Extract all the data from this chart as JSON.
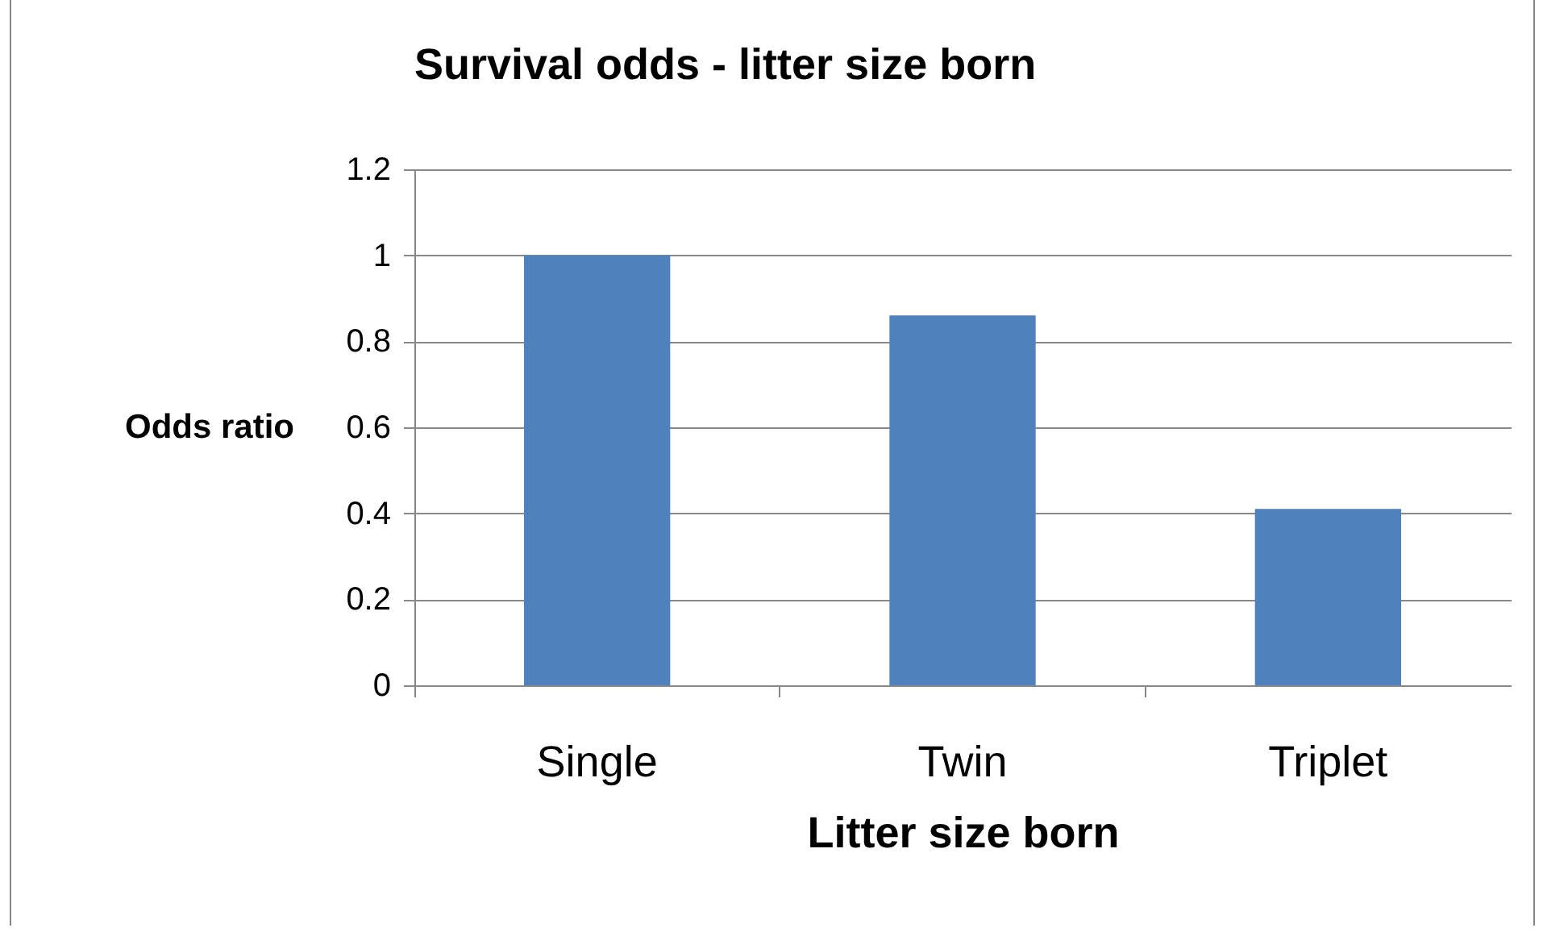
{
  "chart_data": {
    "type": "bar",
    "title": "Survival odds - litter size born",
    "xlabel": "Litter size born",
    "ylabel": "Odds ratio",
    "categories": [
      "Single",
      "Twin",
      "Triplet"
    ],
    "series": [
      {
        "color": "#4f81bd",
        "values": [
          1,
          0.86,
          0.41
        ]
      }
    ],
    "ylim": [
      0,
      1.2
    ],
    "yticks": [
      0,
      0.2,
      0.4,
      0.6,
      0.8,
      1,
      1.2
    ],
    "grid": "y",
    "legend": false
  }
}
